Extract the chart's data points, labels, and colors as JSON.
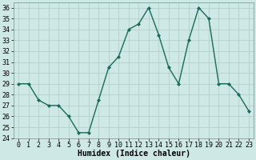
{
  "x": [
    0,
    1,
    2,
    3,
    4,
    5,
    6,
    7,
    8,
    9,
    10,
    11,
    12,
    13,
    14,
    15,
    16,
    17,
    18,
    19,
    20,
    21,
    22,
    23
  ],
  "y": [
    29,
    29,
    27.5,
    27,
    27,
    26,
    24.5,
    24.5,
    27.5,
    30.5,
    31.5,
    34,
    34.5,
    36,
    33.5,
    30.5,
    29,
    33,
    36,
    35,
    29,
    29,
    28,
    26.5
  ],
  "line_color": "#1a6b5a",
  "marker": "D",
  "marker_size": 2,
  "bg_color": "#cde8e5",
  "grid_color": "#b0ccc9",
  "xlabel": "Humidex (Indice chaleur)",
  "xlim": [
    -0.5,
    23.5
  ],
  "ylim": [
    24,
    36.5
  ],
  "yticks": [
    24,
    25,
    26,
    27,
    28,
    29,
    30,
    31,
    32,
    33,
    34,
    35,
    36
  ],
  "xticks": [
    0,
    1,
    2,
    3,
    4,
    5,
    6,
    7,
    8,
    9,
    10,
    11,
    12,
    13,
    14,
    15,
    16,
    17,
    18,
    19,
    20,
    21,
    22,
    23
  ],
  "tick_label_fontsize": 6,
  "xlabel_fontsize": 7,
  "line_width": 1.0
}
